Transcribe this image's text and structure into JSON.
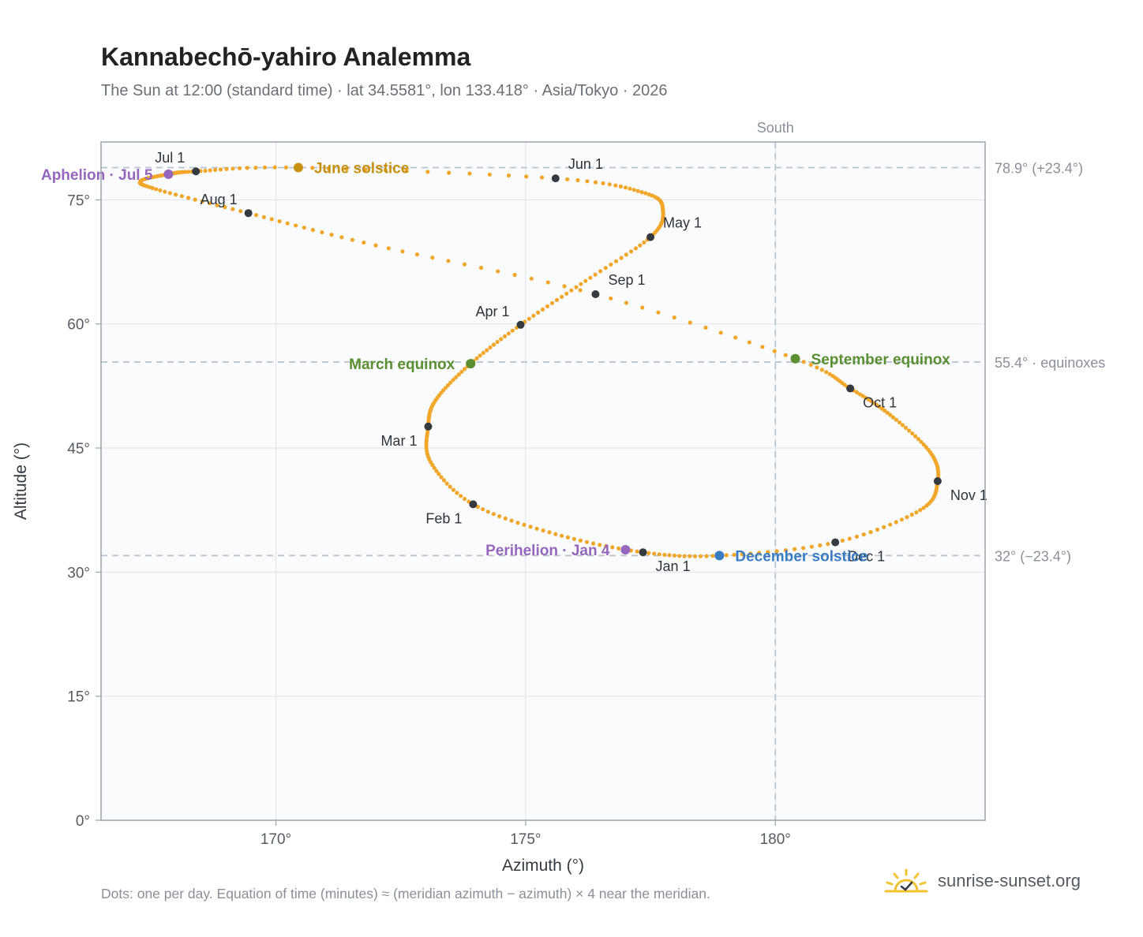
{
  "header": {
    "title": "Kannabechō-yahiro Analemma",
    "subtitle": "The Sun at 12:00 (standard time) · lat 34.5581°, lon 133.418° · Asia/Tokyo · 2026"
  },
  "footer": {
    "note": "Dots: one per day. Equation of time (minutes) ≈ (meridian azimuth − azimuth) × 4 near the meridian.",
    "brand": "sunrise-sunset.org",
    "brand_icon": "sun-logo-icon"
  },
  "colors": {
    "curve": "#f2a72b",
    "month_marker": "#353a40",
    "solstice_june": "#c8900f",
    "equinox": "#5a8f32",
    "solstice_december": "#3a7cc2",
    "apsis": "#9467bd",
    "grid": "#e3e7ec",
    "reference": "#b8c2cd",
    "plot_bg": "#f9fbfd",
    "frame": "#9aa3ad"
  },
  "chart_data": {
    "type": "scatter",
    "xlabel": "Azimuth (°)",
    "ylabel": "Altitude (°)",
    "xlim": [
      166.5,
      184.2
    ],
    "ylim": [
      0,
      82
    ],
    "x_ticks": [
      170,
      175,
      180
    ],
    "x_tick_labels": [
      "170°",
      "175°",
      "180°"
    ],
    "y_ticks": [
      0,
      15,
      30,
      45,
      60,
      75
    ],
    "y_tick_labels": [
      "0°",
      "15°",
      "30°",
      "45°",
      "60°",
      "75°"
    ],
    "grid": true,
    "reference_lines": {
      "vertical": [
        {
          "x": 180,
          "label": "South"
        }
      ],
      "horizontal": [
        {
          "y": 78.9,
          "label": "78.9° (+23.4°)"
        },
        {
          "y": 55.4,
          "label": "55.4° · equinoxes"
        },
        {
          "y": 32.0,
          "label": "32° (−23.4°)"
        }
      ]
    },
    "curve_anchors": [
      {
        "az": 177.35,
        "alt": 32.4
      },
      {
        "az": 178.88,
        "alt": 32.0
      },
      {
        "az": 181.2,
        "alt": 33.6
      },
      {
        "az": 182.9,
        "alt": 37.5
      },
      {
        "az": 183.25,
        "alt": 41.0
      },
      {
        "az": 183.1,
        "alt": 44.5
      },
      {
        "az": 182.3,
        "alt": 49.0
      },
      {
        "az": 181.5,
        "alt": 52.2
      },
      {
        "az": 180.4,
        "alt": 55.8
      },
      {
        "az": 176.4,
        "alt": 63.6
      },
      {
        "az": 172.0,
        "alt": 69.5
      },
      {
        "az": 169.45,
        "alt": 73.4
      },
      {
        "az": 167.6,
        "alt": 76.3
      },
      {
        "az": 167.3,
        "alt": 77.3
      },
      {
        "az": 167.85,
        "alt": 78.1
      },
      {
        "az": 168.4,
        "alt": 78.45
      },
      {
        "az": 170.45,
        "alt": 78.9
      },
      {
        "az": 175.6,
        "alt": 77.6
      },
      {
        "az": 177.4,
        "alt": 75.8
      },
      {
        "az": 177.75,
        "alt": 73.7
      },
      {
        "az": 177.5,
        "alt": 70.5
      },
      {
        "az": 176.2,
        "alt": 65.2
      },
      {
        "az": 174.9,
        "alt": 59.9
      },
      {
        "az": 173.9,
        "alt": 55.2
      },
      {
        "az": 173.2,
        "alt": 50.8
      },
      {
        "az": 173.05,
        "alt": 47.6
      },
      {
        "az": 173.1,
        "alt": 43.3
      },
      {
        "az": 173.95,
        "alt": 38.2
      },
      {
        "az": 175.6,
        "alt": 34.6
      },
      {
        "az": 177.35,
        "alt": 32.4
      }
    ],
    "month_markers": [
      {
        "label": "Jan 1",
        "az": 177.35,
        "alt": 32.4,
        "anchor": "below-right"
      },
      {
        "label": "Feb 1",
        "az": 173.95,
        "alt": 38.2,
        "anchor": "below-left"
      },
      {
        "label": "Mar 1",
        "az": 173.05,
        "alt": 47.6,
        "anchor": "below-left"
      },
      {
        "label": "Apr 1",
        "az": 174.9,
        "alt": 59.9,
        "anchor": "above-left"
      },
      {
        "label": "May 1",
        "az": 177.5,
        "alt": 70.5,
        "anchor": "above-right"
      },
      {
        "label": "Jun 1",
        "az": 175.6,
        "alt": 77.6,
        "anchor": "above-right"
      },
      {
        "label": "Jul 1",
        "az": 168.4,
        "alt": 78.45,
        "anchor": "above-left"
      },
      {
        "label": "Aug 1",
        "az": 169.45,
        "alt": 73.4,
        "anchor": "above-left"
      },
      {
        "label": "Sep 1",
        "az": 176.4,
        "alt": 63.6,
        "anchor": "above-right"
      },
      {
        "label": "Oct 1",
        "az": 181.5,
        "alt": 52.2,
        "anchor": "below-right"
      },
      {
        "label": "Nov 1",
        "az": 183.25,
        "alt": 41.0,
        "anchor": "below-right"
      },
      {
        "label": "Dec 1",
        "az": 181.2,
        "alt": 33.6,
        "anchor": "below-right"
      }
    ],
    "events": [
      {
        "label": "June solstice",
        "az": 170.45,
        "alt": 78.9,
        "color_key": "solstice_june",
        "side": "right"
      },
      {
        "label": "March equinox",
        "az": 173.9,
        "alt": 55.2,
        "color_key": "equinox",
        "side": "left"
      },
      {
        "label": "September equinox",
        "az": 180.4,
        "alt": 55.8,
        "color_key": "equinox",
        "side": "right"
      },
      {
        "label": "December solstice",
        "az": 178.88,
        "alt": 32.0,
        "color_key": "solstice_december",
        "side": "right"
      },
      {
        "label": "Aphelion · Jul 5",
        "az": 167.85,
        "alt": 78.1,
        "color_key": "apsis",
        "side": "left"
      },
      {
        "label": "Perihelion · Jan 4",
        "az": 177.0,
        "alt": 32.7,
        "color_key": "apsis",
        "side": "left"
      }
    ]
  }
}
